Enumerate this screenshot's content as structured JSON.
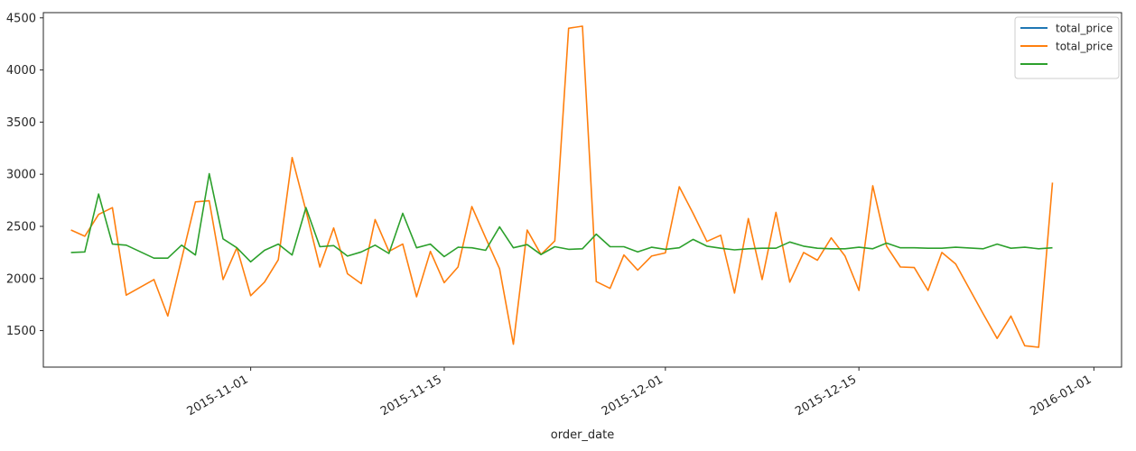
{
  "chart_data": {
    "type": "line",
    "title": "",
    "xlabel": "order_date",
    "ylabel": "",
    "x_tick_labels": [
      "2015-11-01",
      "2015-11-15",
      "2015-12-01",
      "2015-12-15",
      "2016-01-01"
    ],
    "x_tick_dates": [
      "2015-11-01",
      "2015-11-15",
      "2015-12-01",
      "2015-12-15",
      "2016-01-01"
    ],
    "y_ticks": [
      1500,
      2000,
      2500,
      3000,
      3500,
      4000,
      4500
    ],
    "ylim": [
      1150,
      4550
    ],
    "xlim": [
      "2015-10-17",
      "2016-01-03"
    ],
    "grid": false,
    "legend_position": "top-right",
    "legend": [
      "total_price",
      "total_price",
      ""
    ],
    "series": [
      {
        "name": "total_price",
        "color": "#1f77b4",
        "points": []
      },
      {
        "name": "total_price",
        "color": "#ff7f0e",
        "points": [
          [
            "2015-10-19",
            2465
          ],
          [
            "2015-10-20",
            2405
          ],
          [
            "2015-10-21",
            2615
          ],
          [
            "2015-10-22",
            2680
          ],
          [
            "2015-10-23",
            1840
          ],
          [
            "2015-10-25",
            1990
          ],
          [
            "2015-10-26",
            1640
          ],
          [
            "2015-10-28",
            2735
          ],
          [
            "2015-10-29",
            2745
          ],
          [
            "2015-10-30",
            1990
          ],
          [
            "2015-10-31",
            2295
          ],
          [
            "2015-11-01",
            1835
          ],
          [
            "2015-11-02",
            1965
          ],
          [
            "2015-11-03",
            2180
          ],
          [
            "2015-11-04",
            3160
          ],
          [
            "2015-11-05",
            2650
          ],
          [
            "2015-11-06",
            2110
          ],
          [
            "2015-11-07",
            2485
          ],
          [
            "2015-11-08",
            2045
          ],
          [
            "2015-11-09",
            1950
          ],
          [
            "2015-11-10",
            2565
          ],
          [
            "2015-11-11",
            2260
          ],
          [
            "2015-11-12",
            2330
          ],
          [
            "2015-11-13",
            1825
          ],
          [
            "2015-11-14",
            2260
          ],
          [
            "2015-11-15",
            1960
          ],
          [
            "2015-11-16",
            2110
          ],
          [
            "2015-11-17",
            2690
          ],
          [
            "2015-11-18",
            2390
          ],
          [
            "2015-11-19",
            2095
          ],
          [
            "2015-11-20",
            1370
          ],
          [
            "2015-11-21",
            2465
          ],
          [
            "2015-11-22",
            2230
          ],
          [
            "2015-11-23",
            2360
          ],
          [
            "2015-11-24",
            4400
          ],
          [
            "2015-11-25",
            4420
          ],
          [
            "2015-11-26",
            1970
          ],
          [
            "2015-11-27",
            1905
          ],
          [
            "2015-11-28",
            2225
          ],
          [
            "2015-11-29",
            2080
          ],
          [
            "2015-11-30",
            2215
          ],
          [
            "2015-12-01",
            2245
          ],
          [
            "2015-12-02",
            2880
          ],
          [
            "2015-12-03",
            2625
          ],
          [
            "2015-12-04",
            2355
          ],
          [
            "2015-12-05",
            2415
          ],
          [
            "2015-12-06",
            1860
          ],
          [
            "2015-12-07",
            2575
          ],
          [
            "2015-12-08",
            1990
          ],
          [
            "2015-12-09",
            2635
          ],
          [
            "2015-12-10",
            1965
          ],
          [
            "2015-12-11",
            2250
          ],
          [
            "2015-12-12",
            2175
          ],
          [
            "2015-12-13",
            2390
          ],
          [
            "2015-12-14",
            2215
          ],
          [
            "2015-12-15",
            1885
          ],
          [
            "2015-12-16",
            2890
          ],
          [
            "2015-12-17",
            2310
          ],
          [
            "2015-12-18",
            2110
          ],
          [
            "2015-12-19",
            2105
          ],
          [
            "2015-12-20",
            1885
          ],
          [
            "2015-12-21",
            2250
          ],
          [
            "2015-12-22",
            2140
          ],
          [
            "2015-12-24",
            1660
          ],
          [
            "2015-12-25",
            1425
          ],
          [
            "2015-12-26",
            1640
          ],
          [
            "2015-12-27",
            1355
          ],
          [
            "2015-12-28",
            1340
          ],
          [
            "2015-12-29",
            2920
          ]
        ]
      },
      {
        "name": "",
        "color": "#2ca02c",
        "points": [
          [
            "2015-10-19",
            2250
          ],
          [
            "2015-10-20",
            2255
          ],
          [
            "2015-10-21",
            2810
          ],
          [
            "2015-10-22",
            2330
          ],
          [
            "2015-10-23",
            2320
          ],
          [
            "2015-10-25",
            2195
          ],
          [
            "2015-10-26",
            2195
          ],
          [
            "2015-10-27",
            2320
          ],
          [
            "2015-10-28",
            2225
          ],
          [
            "2015-10-29",
            3005
          ],
          [
            "2015-10-30",
            2380
          ],
          [
            "2015-10-31",
            2295
          ],
          [
            "2015-11-01",
            2160
          ],
          [
            "2015-11-02",
            2270
          ],
          [
            "2015-11-03",
            2330
          ],
          [
            "2015-11-04",
            2225
          ],
          [
            "2015-11-05",
            2680
          ],
          [
            "2015-11-06",
            2305
          ],
          [
            "2015-11-07",
            2315
          ],
          [
            "2015-11-08",
            2215
          ],
          [
            "2015-11-09",
            2255
          ],
          [
            "2015-11-10",
            2320
          ],
          [
            "2015-11-11",
            2240
          ],
          [
            "2015-11-12",
            2625
          ],
          [
            "2015-11-13",
            2295
          ],
          [
            "2015-11-14",
            2330
          ],
          [
            "2015-11-15",
            2210
          ],
          [
            "2015-11-16",
            2300
          ],
          [
            "2015-11-17",
            2295
          ],
          [
            "2015-11-18",
            2270
          ],
          [
            "2015-11-19",
            2495
          ],
          [
            "2015-11-20",
            2295
          ],
          [
            "2015-11-21",
            2325
          ],
          [
            "2015-11-22",
            2230
          ],
          [
            "2015-11-23",
            2305
          ],
          [
            "2015-11-24",
            2280
          ],
          [
            "2015-11-25",
            2285
          ],
          [
            "2015-11-26",
            2425
          ],
          [
            "2015-11-27",
            2305
          ],
          [
            "2015-11-28",
            2305
          ],
          [
            "2015-11-29",
            2255
          ],
          [
            "2015-11-30",
            2300
          ],
          [
            "2015-12-01",
            2280
          ],
          [
            "2015-12-02",
            2295
          ],
          [
            "2015-12-03",
            2375
          ],
          [
            "2015-12-04",
            2310
          ],
          [
            "2015-12-05",
            2290
          ],
          [
            "2015-12-06",
            2275
          ],
          [
            "2015-12-07",
            2285
          ],
          [
            "2015-12-08",
            2290
          ],
          [
            "2015-12-09",
            2290
          ],
          [
            "2015-12-10",
            2350
          ],
          [
            "2015-12-11",
            2310
          ],
          [
            "2015-12-12",
            2290
          ],
          [
            "2015-12-13",
            2285
          ],
          [
            "2015-12-14",
            2285
          ],
          [
            "2015-12-15",
            2300
          ],
          [
            "2015-12-16",
            2285
          ],
          [
            "2015-12-17",
            2340
          ],
          [
            "2015-12-18",
            2295
          ],
          [
            "2015-12-19",
            2295
          ],
          [
            "2015-12-20",
            2290
          ],
          [
            "2015-12-21",
            2290
          ],
          [
            "2015-12-22",
            2300
          ],
          [
            "2015-12-24",
            2285
          ],
          [
            "2015-12-25",
            2330
          ],
          [
            "2015-12-26",
            2290
          ],
          [
            "2015-12-27",
            2300
          ],
          [
            "2015-12-28",
            2285
          ],
          [
            "2015-12-29",
            2295
          ]
        ]
      }
    ]
  }
}
